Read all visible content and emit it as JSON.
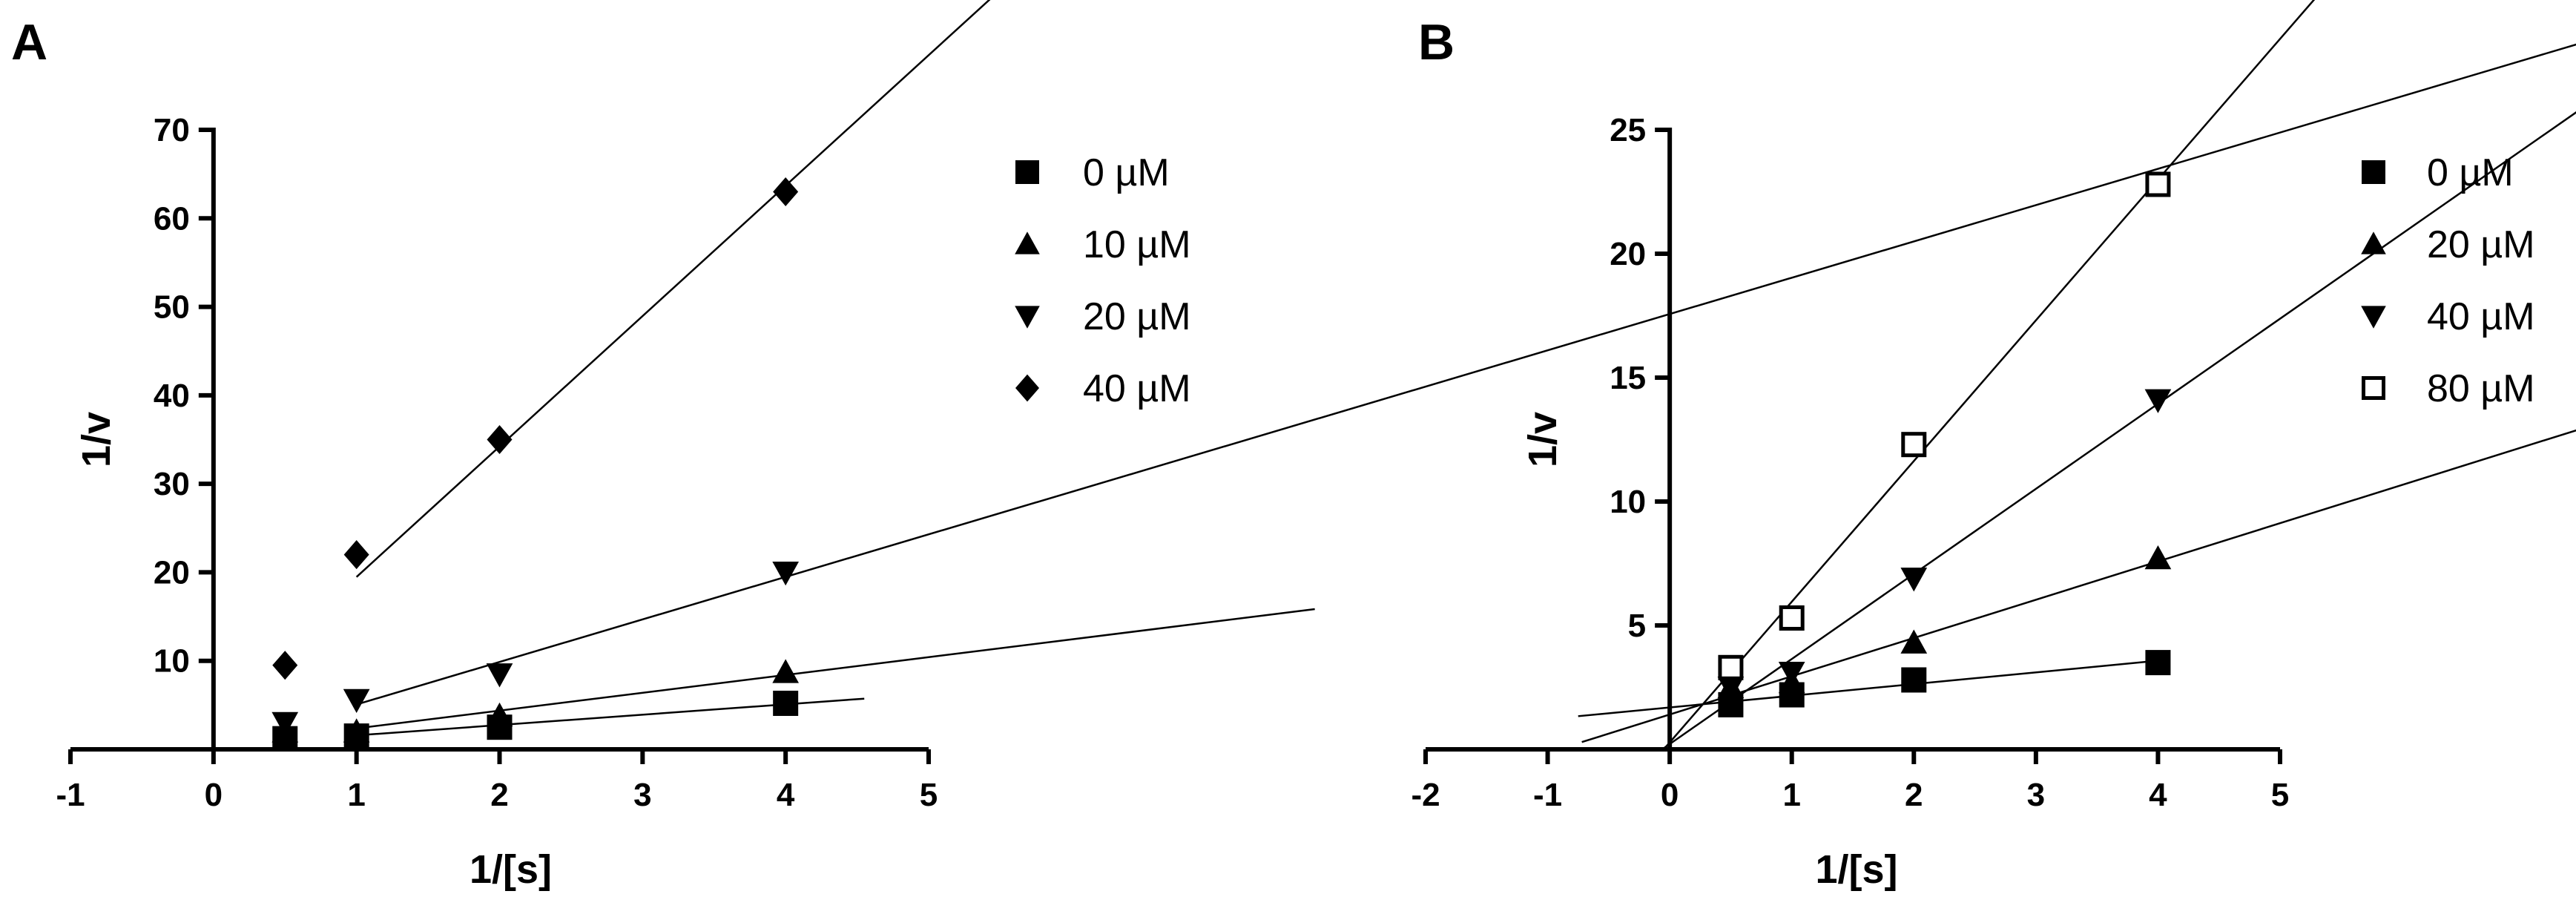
{
  "chart_data": [
    {
      "type": "scatter",
      "panel_label": "A",
      "title": "",
      "xlabel": "1/[s]",
      "ylabel": "1/v",
      "xlim": [
        -1,
        5
      ],
      "ylim": [
        0,
        70
      ],
      "xticks": [
        -1,
        0,
        1,
        2,
        3,
        4,
        5
      ],
      "yticks": [
        10,
        20,
        30,
        40,
        50,
        60,
        70
      ],
      "grid": false,
      "legend_position": "right",
      "series": [
        {
          "name": "0 µM",
          "marker": "square",
          "x": [
            0.5,
            1,
            2,
            4
          ],
          "y": [
            1.2,
            1.5,
            2.5,
            5.2
          ],
          "fit": [
            1.0,
            4.55
          ]
        },
        {
          "name": "10 µM",
          "marker": "triangle-up",
          "x": [
            0.5,
            1,
            2,
            4
          ],
          "y": [
            2.0,
            2.0,
            3.8,
            8.7
          ],
          "fit": [
            1.0,
            7.7
          ]
        },
        {
          "name": "20 µM",
          "marker": "triangle-down",
          "x": [
            0.5,
            1,
            2,
            4
          ],
          "y": [
            3.0,
            5.6,
            8.5,
            20.0
          ],
          "fit": [
            1.0,
            19.6
          ]
        },
        {
          "name": "40 µM",
          "marker": "diamond",
          "x": [
            0.5,
            1,
            2,
            4
          ],
          "y": [
            9.5,
            22.0,
            35.0,
            63.0
          ],
          "fit": [
            1.0,
            62.8
          ]
        }
      ]
    },
    {
      "type": "scatter",
      "panel_label": "B",
      "title": "",
      "xlabel": "1/[s]",
      "ylabel": "1/v",
      "xlim": [
        -2,
        5
      ],
      "ylim": [
        0,
        25
      ],
      "xticks": [
        -2,
        -1,
        0,
        1,
        2,
        3,
        4,
        5
      ],
      "yticks": [
        5,
        10,
        15,
        20,
        25
      ],
      "grid": false,
      "legend_position": "right",
      "series": [
        {
          "name": "0 µM",
          "marker": "square",
          "x": [
            0.5,
            1,
            2,
            4
          ],
          "y": [
            1.8,
            2.2,
            2.8,
            3.5
          ],
          "fit": [
            -0.75,
            4.0
          ]
        },
        {
          "name": "20 µM",
          "marker": "triangle-up",
          "x": [
            0.5,
            1,
            2,
            4
          ],
          "y": [
            2.5,
            2.7,
            4.3,
            7.7
          ],
          "fit": [
            -0.72,
            7.9
          ]
        },
        {
          "name": "40 µM",
          "marker": "triangle-down",
          "x": [
            0.5,
            1,
            2,
            4
          ],
          "y": [
            2.5,
            3.1,
            6.9,
            14.1
          ],
          "fit": [
            -0.35,
            14.2
          ]
        },
        {
          "name": "80 µM",
          "marker": "open-square",
          "x": [
            0.5,
            1,
            2,
            4
          ],
          "y": [
            3.3,
            5.3,
            12.3,
            22.8
          ],
          "fit": [
            -0.25,
            22.9
          ]
        }
      ]
    }
  ]
}
